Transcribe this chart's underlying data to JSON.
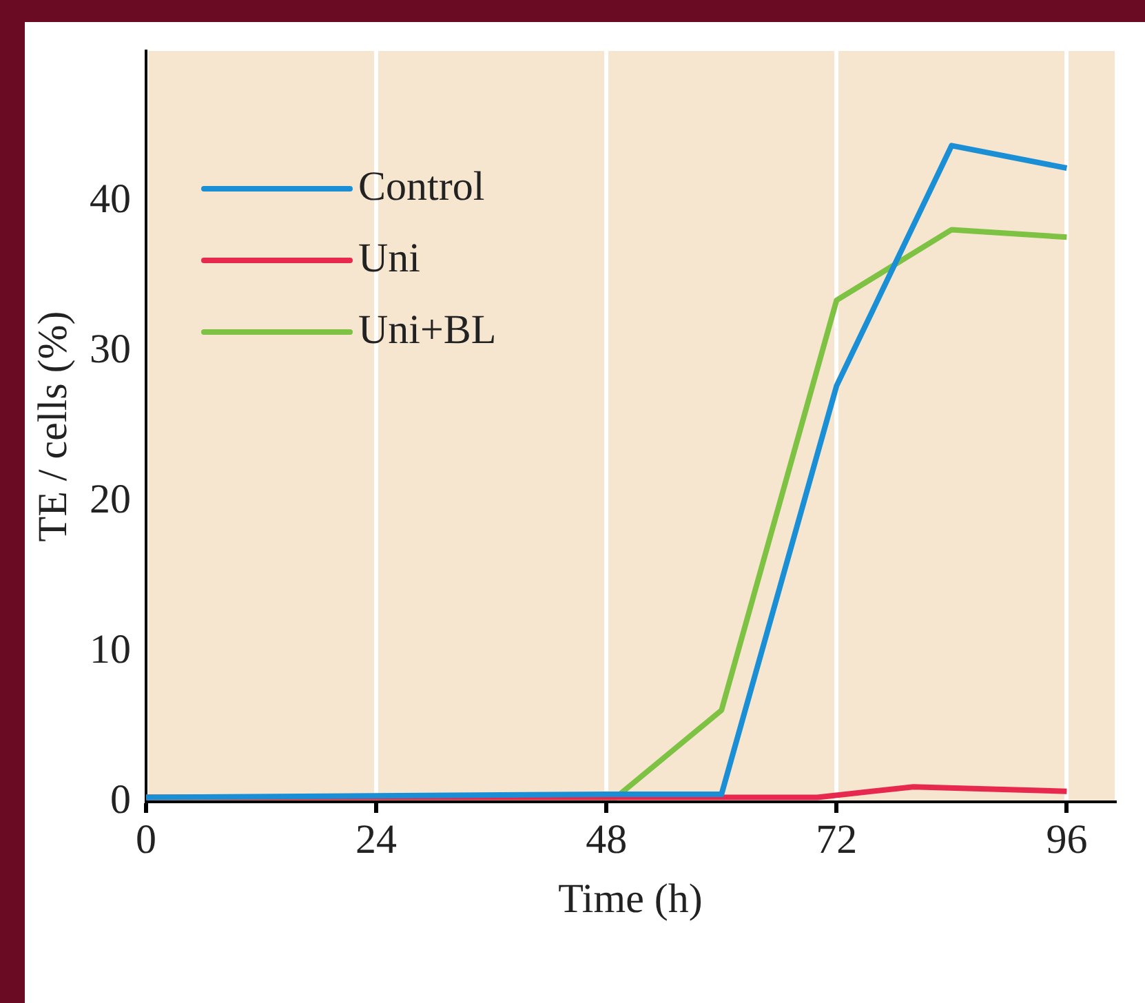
{
  "chart_data": {
    "type": "line",
    "xlabel": "Time (h)",
    "ylabel": "TE / cells (%)",
    "xlim": [
      0,
      101
    ],
    "xticks": [
      0,
      24,
      48,
      72,
      96
    ],
    "ylim": [
      0,
      50
    ],
    "yticks": [
      0,
      10,
      20,
      30,
      40
    ],
    "grid": "x",
    "legend": "top left",
    "marker": "none",
    "line_style": "solid",
    "series": [
      {
        "name": "Control",
        "color": "#1a8fd6",
        "x": [
          0,
          48,
          60,
          72,
          84,
          96
        ],
        "values": [
          0.3,
          0.5,
          0.5,
          27.7,
          43.7,
          42.2
        ]
      },
      {
        "name": "Uni",
        "color": "#e8294f",
        "x": [
          0,
          70,
          80,
          96
        ],
        "values": [
          0.3,
          0.3,
          1,
          0.7
        ]
      },
      {
        "name": "Uni+BL",
        "color": "#7dc242",
        "x": [
          0,
          49,
          60,
          72,
          84,
          96
        ],
        "values": [
          0.3,
          0.3,
          6.1,
          33.4,
          38.1,
          37.6
        ]
      }
    ]
  }
}
